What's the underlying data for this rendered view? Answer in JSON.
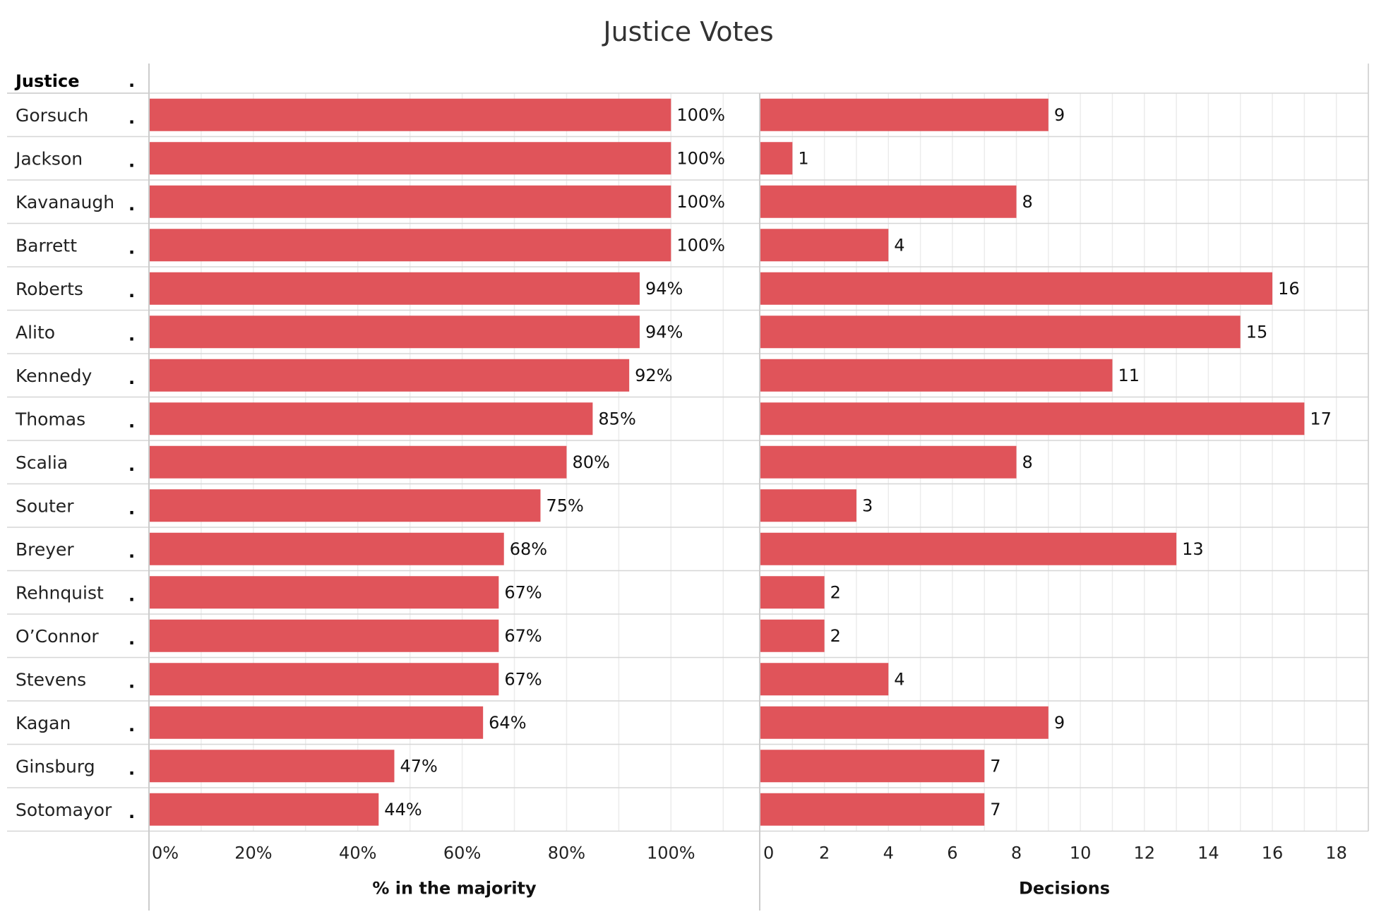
{
  "chart_data": {
    "type": "bar",
    "orientation": "horizontal",
    "title": "Justice Votes",
    "row_header": "Justice",
    "row_header_marker": ".",
    "row_marker": ".",
    "categories": [
      "Gorsuch",
      "Jackson",
      "Kavanaugh",
      "Barrett",
      "Roberts",
      "Alito",
      "Kennedy",
      "Thomas",
      "Scalia",
      "Souter",
      "Breyer",
      "Rehnquist",
      "O’Connor",
      "Stevens",
      "Kagan",
      "Ginsburg",
      "Sotomayor"
    ],
    "panels": [
      {
        "name": "pct_majority",
        "xlabel": "% in the majority",
        "xlim": [
          0,
          1.17
        ],
        "ticks": [
          0,
          0.2,
          0.4,
          0.6,
          0.8,
          1.0
        ],
        "tick_labels": [
          "0%",
          "20%",
          "40%",
          "60%",
          "80%",
          "100%"
        ],
        "values": [
          1.0,
          1.0,
          1.0,
          1.0,
          0.94,
          0.94,
          0.92,
          0.85,
          0.8,
          0.75,
          0.68,
          0.67,
          0.67,
          0.67,
          0.64,
          0.47,
          0.44
        ],
        "value_labels": [
          "100%",
          "100%",
          "100%",
          "100%",
          "94%",
          "94%",
          "92%",
          "85%",
          "80%",
          "75%",
          "68%",
          "67%",
          "67%",
          "67%",
          "64%",
          "47%",
          "44%"
        ]
      },
      {
        "name": "decisions",
        "xlabel": "Decisions",
        "xlim": [
          0,
          19
        ],
        "ticks": [
          0,
          2,
          4,
          6,
          8,
          10,
          12,
          14,
          16,
          18
        ],
        "tick_labels": [
          "0",
          "2",
          "4",
          "6",
          "8",
          "10",
          "12",
          "14",
          "16",
          "18"
        ],
        "values": [
          9,
          1,
          8,
          4,
          16,
          15,
          11,
          17,
          8,
          3,
          13,
          2,
          2,
          4,
          9,
          7,
          7
        ],
        "value_labels": [
          "9",
          "1",
          "8",
          "4",
          "16",
          "15",
          "11",
          "17",
          "8",
          "3",
          "13",
          "2",
          "2",
          "4",
          "9",
          "7",
          "7"
        ]
      }
    ],
    "colors": {
      "bar": "#e0545a",
      "grid": "#ececec",
      "row_divider": "#d6d6d6",
      "panel_divider": "#cccccc"
    }
  }
}
